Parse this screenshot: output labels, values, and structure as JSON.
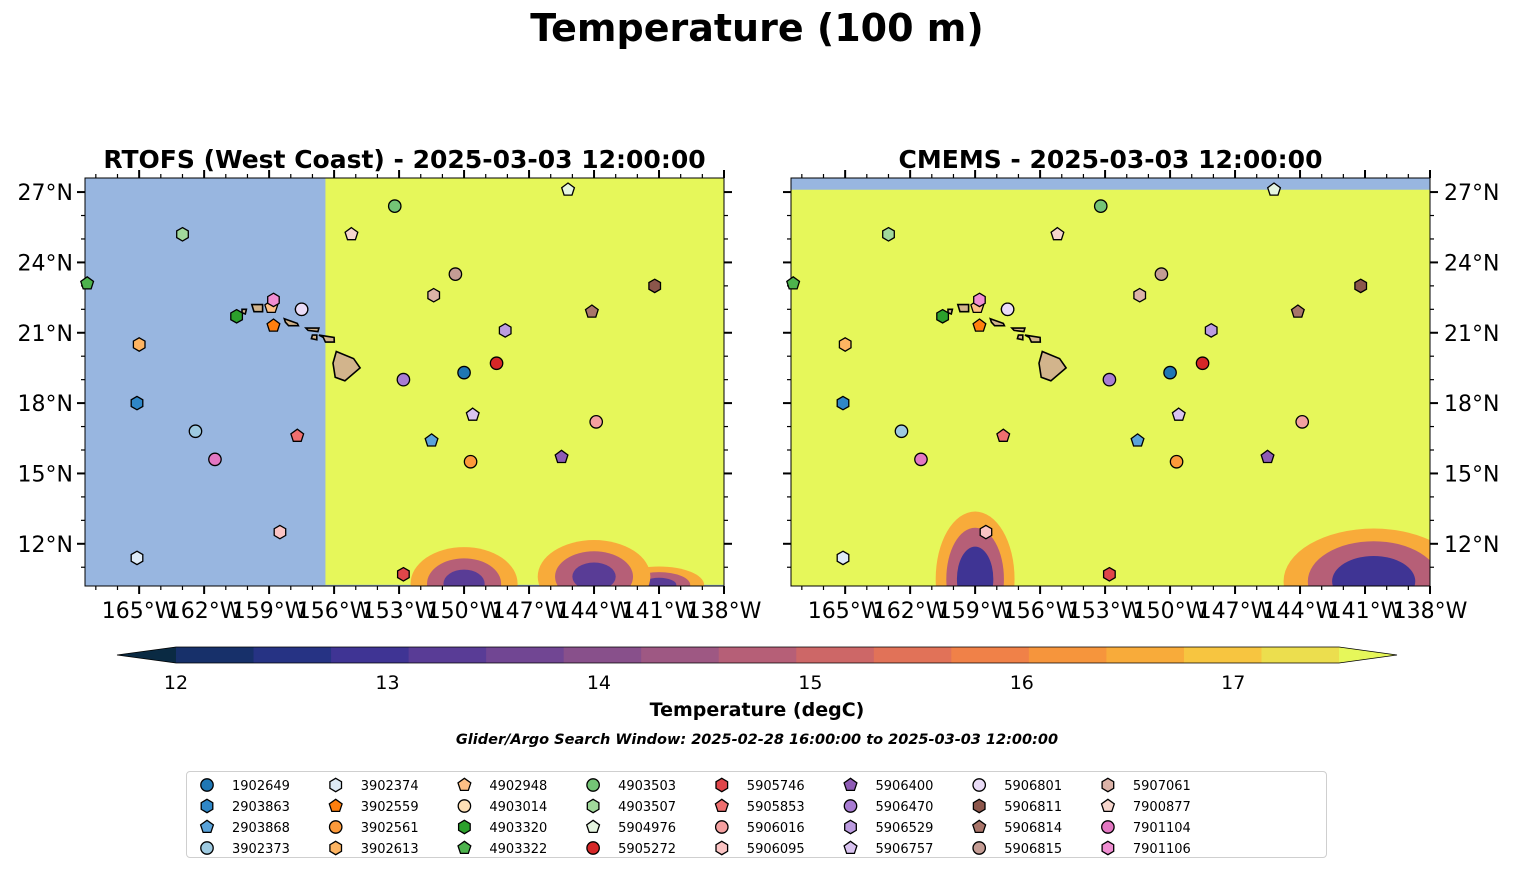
{
  "chart_data": {
    "type": "map",
    "title": "Temperature (100 m)",
    "panels": [
      {
        "title": "RTOFS (West Coast) - 2025-03-03 12:00:00"
      },
      {
        "title": "CMEMS - 2025-03-03 12:00:00"
      }
    ],
    "x_ticks": [
      "165°W",
      "162°W",
      "159°W",
      "156°W",
      "153°W",
      "150°W",
      "147°W",
      "144°W",
      "141°W",
      "138°W"
    ],
    "y_ticks": [
      "27°N",
      "24°N",
      "21°N",
      "18°N",
      "15°N",
      "12°N"
    ],
    "xlim": [
      -167.5,
      -138
    ],
    "ylim": [
      10.2,
      27.6
    ],
    "colorbar": {
      "label": "Temperature (degC)",
      "ticks": [
        "12",
        "13",
        "14",
        "15",
        "16",
        "17"
      ],
      "range": [
        12,
        17.5
      ],
      "extend": "both",
      "colors": [
        "#0a2a43",
        "#17306a",
        "#263384",
        "#3f3494",
        "#593c96",
        "#714693",
        "#88508b",
        "#9e5883",
        "#b65f77",
        "#cd6767",
        "#e17258",
        "#f08148",
        "#f6953c",
        "#f8ab3a",
        "#f7c540",
        "#ecde4e",
        "#e6f75a"
      ]
    },
    "colorbar_label": "Temperature (degC)",
    "search_window": "Glider/Argo Search Window: 2025-02-28 16:00:00 to 2025-03-03 12:00:00",
    "colors": {
      "land": "#d2b48c",
      "nodata": "#98b6e0",
      "warm": "#e6f75a"
    },
    "floats": [
      {
        "id": "1902649",
        "marker": "o",
        "color": "#1f77b4",
        "lon": -150.0,
        "lat": 19.3
      },
      {
        "id": "2903863",
        "marker": "h",
        "color": "#2f87c8",
        "lon": -165.1,
        "lat": 18.0
      },
      {
        "id": "2903868",
        "marker": "p",
        "color": "#5aa3da",
        "lon": -151.5,
        "lat": 16.4
      },
      {
        "id": "3902373",
        "marker": "o",
        "color": "#9ecae1",
        "lon": -162.4,
        "lat": 16.8
      },
      {
        "id": "3902374",
        "marker": "h",
        "color": "#deebf7",
        "lon": -165.1,
        "lat": 11.4
      },
      {
        "id": "3902559",
        "marker": "p",
        "color": "#ff7f0e",
        "lon": -158.8,
        "lat": 21.3
      },
      {
        "id": "3902561",
        "marker": "o",
        "color": "#fd9a3a",
        "lon": -149.7,
        "lat": 15.5
      },
      {
        "id": "3902613",
        "marker": "h",
        "color": "#fdb462",
        "lon": -165.0,
        "lat": 20.5
      },
      {
        "id": "4902948",
        "marker": "p",
        "color": "#fdc086",
        "lon": -158.9,
        "lat": 22.1
      },
      {
        "id": "4903014",
        "marker": "o",
        "color": "#fee0b6",
        "lon": -157.5,
        "lat": 22.0
      },
      {
        "id": "4903320",
        "marker": "h",
        "color": "#2ca02c",
        "lon": -160.5,
        "lat": 21.7
      },
      {
        "id": "4903322",
        "marker": "p",
        "color": "#4db34d",
        "lon": -167.4,
        "lat": 23.1
      },
      {
        "id": "4903503",
        "marker": "o",
        "color": "#74c476",
        "lon": -153.2,
        "lat": 26.4
      },
      {
        "id": "4903507",
        "marker": "h",
        "color": "#a1d99b",
        "lon": -163.0,
        "lat": 25.2
      },
      {
        "id": "5904976",
        "marker": "p",
        "color": "#e5f5e0",
        "lon": -145.2,
        "lat": 27.1
      },
      {
        "id": "5905272",
        "marker": "o",
        "color": "#d62728",
        "lon": -148.5,
        "lat": 19.7
      },
      {
        "id": "5905746",
        "marker": "h",
        "color": "#e0464a",
        "lon": -152.8,
        "lat": 10.7
      },
      {
        "id": "5905853",
        "marker": "p",
        "color": "#ef6f6f",
        "lon": -157.7,
        "lat": 16.6
      },
      {
        "id": "5906016",
        "marker": "o",
        "color": "#f4a0a0",
        "lon": -143.9,
        "lat": 17.2
      },
      {
        "id": "5906095",
        "marker": "h",
        "color": "#fbc4c4",
        "lon": -158.5,
        "lat": 12.5
      },
      {
        "id": "5906400",
        "marker": "p",
        "color": "#8e5bb5",
        "lon": -145.5,
        "lat": 15.7
      },
      {
        "id": "5906470",
        "marker": "o",
        "color": "#a87cd2",
        "lon": -152.8,
        "lat": 19.0
      },
      {
        "id": "5906529",
        "marker": "h",
        "color": "#bc9ce0",
        "lon": -148.1,
        "lat": 21.1
      },
      {
        "id": "5906757",
        "marker": "p",
        "color": "#d9c3f0",
        "lon": -149.6,
        "lat": 17.5
      },
      {
        "id": "5906801",
        "marker": "o",
        "color": "#eadcf7",
        "lon": -157.5,
        "lat": 22.0
      },
      {
        "id": "5906811",
        "marker": "h",
        "color": "#8c564b",
        "lon": -141.2,
        "lat": 23.0
      },
      {
        "id": "5906814",
        "marker": "p",
        "color": "#a9756a",
        "lon": -144.1,
        "lat": 21.9
      },
      {
        "id": "5906815",
        "marker": "o",
        "color": "#c49c94",
        "lon": -150.4,
        "lat": 23.5
      },
      {
        "id": "5907061",
        "marker": "h",
        "color": "#dcb3a8",
        "lon": -151.4,
        "lat": 22.6
      },
      {
        "id": "7900877",
        "marker": "p",
        "color": "#f6d6cd",
        "lon": -155.2,
        "lat": 25.2
      },
      {
        "id": "7901104",
        "marker": "o",
        "color": "#e377c2",
        "lon": -161.5,
        "lat": 15.6
      },
      {
        "id": "7901106",
        "marker": "h",
        "color": "#f08ed2",
        "lon": -158.8,
        "lat": 22.4
      }
    ]
  }
}
